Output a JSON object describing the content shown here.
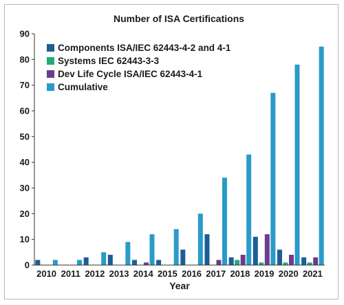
{
  "chart_data": {
    "type": "bar",
    "title": "Number of ISA Certifications",
    "xlabel": "Year",
    "ylabel": "",
    "ylim": [
      0,
      90
    ],
    "yticks": [
      0,
      10,
      20,
      30,
      40,
      50,
      60,
      70,
      80,
      90
    ],
    "categories": [
      "2010",
      "2011",
      "2012",
      "2013",
      "2014",
      "2015",
      "2016",
      "2017",
      "2018",
      "2019",
      "2020",
      "2021"
    ],
    "series": [
      {
        "name": "Components ISA/IEC 62443-4-2 and 4-1",
        "color": "#1b5e96",
        "values": [
          2,
          0,
          3,
          4,
          2,
          2,
          6,
          12,
          3,
          11,
          6,
          3
        ]
      },
      {
        "name": "Systems IEC 62443-3-3",
        "color": "#27a87a",
        "values": [
          0,
          0,
          0,
          0,
          0,
          0,
          0,
          0,
          2,
          1,
          1,
          1
        ]
      },
      {
        "name": "Dev Life Cycle ISA/IEC 62443-4-1",
        "color": "#6b3c8c",
        "values": [
          0,
          0,
          0,
          0,
          1,
          0,
          0,
          2,
          4,
          12,
          4,
          3
        ]
      },
      {
        "name": "Cumulative",
        "color": "#2a9bc8",
        "values": [
          2,
          2,
          5,
          9,
          12,
          14,
          20,
          34,
          43,
          67,
          78,
          85
        ]
      }
    ],
    "legend_position": "top-left",
    "grid": false
  }
}
